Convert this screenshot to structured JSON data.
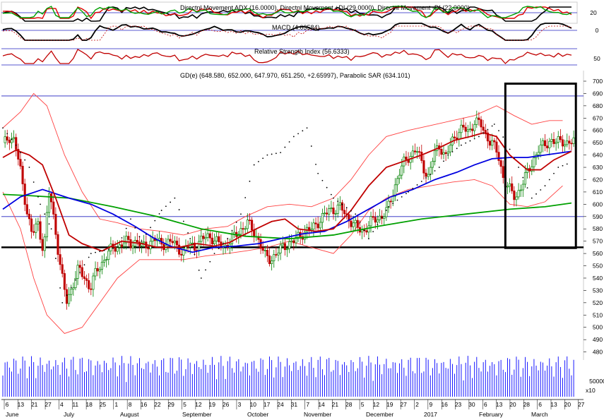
{
  "panels": {
    "adx": {
      "label": "Directnl Movement ADX (16.0000), Directnl Movement +DI (29.0000), Directnl Movement -DI (22.0000)",
      "ticks": [
        "20"
      ]
    },
    "macd": {
      "label": "MACD (4.03584)",
      "ticks": [
        "0"
      ]
    },
    "rsi": {
      "label": "Relative Strength Index (56.6333)",
      "ticks": [
        "50"
      ]
    },
    "price": {
      "label": "GD(e) (648.580, 652.000, 647.970, 651.250, +2.65997), Parabolic SAR (634.101)"
    },
    "volume": {
      "ticks": [
        "50000",
        "x10"
      ]
    }
  },
  "colors": {
    "candle_up": "#008000",
    "candle_down": "#c00000",
    "ma_short": "#c00000",
    "ma_mid": "#0000e0",
    "ma_long": "#00a000",
    "band": "#ff4040",
    "hline": "#2020c0",
    "sar": "#000000",
    "volume": "#0000ff"
  },
  "x_axis": {
    "day_labels": [
      "6",
      "13",
      "21",
      "27",
      "4",
      "11",
      "18",
      "25",
      "1",
      "8",
      "16",
      "22",
      "29",
      "5",
      "12",
      "19",
      "26",
      "3",
      "10",
      "17",
      "24",
      "31",
      "7",
      "14",
      "21",
      "28",
      "5",
      "12",
      "19",
      "27",
      "2",
      "9",
      "16",
      "23",
      "30",
      "6",
      "13",
      "20",
      "28",
      "6",
      "13",
      "20",
      "27"
    ],
    "month_labels": [
      "June",
      "July",
      "August",
      "September",
      "October",
      "November",
      "December",
      "2017",
      "February",
      "March"
    ]
  },
  "chart_data": {
    "type": "candlestick",
    "title": "GD(e) (648.580, 652.000, 647.970, 651.250, +2.65997), Parabolic SAR (634.101)",
    "y_ticks": [
      480,
      490,
      500,
      510,
      520,
      530,
      540,
      550,
      560,
      570,
      580,
      590,
      600,
      610,
      620,
      630,
      640,
      650,
      660,
      670,
      680,
      690,
      700
    ],
    "ylim": [
      472,
      700
    ],
    "last": {
      "open": 648.58,
      "high": 652.0,
      "low": 647.97,
      "close": 651.25,
      "change": 2.65997
    },
    "sar_last": 634.101,
    "closes": [
      648,
      655,
      652,
      628,
      598,
      575,
      585,
      562,
      612,
      580,
      545,
      520,
      535,
      548,
      540,
      532,
      545,
      552,
      560,
      565,
      566,
      570,
      568,
      570,
      565,
      568,
      572,
      568,
      568,
      570,
      565,
      560,
      568,
      565,
      570,
      575,
      572,
      568,
      565,
      570,
      575,
      580,
      585,
      578,
      570,
      558,
      555,
      560,
      565,
      568,
      570,
      575,
      578,
      580,
      585,
      590,
      595,
      596,
      598,
      590,
      585,
      580,
      578,
      585,
      588,
      590,
      595,
      610,
      625,
      635,
      640,
      645,
      632,
      622,
      640,
      648,
      638,
      650,
      658,
      662,
      658,
      668,
      665,
      655,
      650,
      640,
      620,
      612,
      605,
      615,
      625,
      635,
      645,
      648,
      652,
      650,
      652,
      649,
      651
    ],
    "sar_points": [
      [
        0,
        662
      ],
      [
        6,
        648
      ],
      [
        12,
        630
      ],
      [
        17,
        600
      ],
      [
        22,
        580
      ],
      [
        27,
        520
      ],
      [
        40,
        560
      ],
      [
        52,
        565
      ],
      [
        58,
        588
      ],
      [
        63,
        570
      ],
      [
        72,
        595
      ],
      [
        78,
        605
      ],
      [
        85,
        572
      ],
      [
        90,
        540
      ],
      [
        96,
        560
      ],
      [
        102,
        572
      ],
      [
        108,
        592
      ],
      [
        114,
        632
      ],
      [
        120,
        640
      ],
      [
        126,
        642
      ],
      [
        132,
        655
      ],
      [
        138,
        662
      ],
      [
        143,
        625
      ],
      [
        150,
        605
      ],
      [
        160,
        592
      ],
      [
        166,
        572
      ],
      [
        175,
        598
      ],
      [
        184,
        610
      ],
      [
        198,
        630
      ],
      [
        202,
        640
      ],
      [
        208,
        648
      ],
      [
        216,
        655
      ],
      [
        223,
        665
      ],
      [
        228,
        652
      ],
      [
        234,
        630
      ],
      [
        240,
        605
      ],
      [
        246,
        615
      ],
      [
        252,
        630
      ],
      [
        258,
        634
      ]
    ],
    "ma_short_points": [
      [
        0,
        638
      ],
      [
        6,
        644
      ],
      [
        12,
        640
      ],
      [
        18,
        632
      ],
      [
        24,
        605
      ],
      [
        30,
        575
      ],
      [
        36,
        568
      ],
      [
        45,
        562
      ],
      [
        54,
        570
      ],
      [
        63,
        568
      ],
      [
        70,
        565
      ],
      [
        80,
        565
      ],
      [
        88,
        568
      ],
      [
        96,
        566
      ],
      [
        103,
        569
      ],
      [
        108,
        574
      ],
      [
        115,
        580
      ],
      [
        122,
        586
      ],
      [
        128,
        588
      ],
      [
        134,
        580
      ],
      [
        142,
        578
      ],
      [
        150,
        580
      ],
      [
        158,
        595
      ],
      [
        166,
        615
      ],
      [
        174,
        630
      ],
      [
        182,
        635
      ],
      [
        190,
        640
      ],
      [
        198,
        646
      ],
      [
        205,
        652
      ],
      [
        212,
        655
      ],
      [
        218,
        658
      ],
      [
        224,
        655
      ],
      [
        230,
        640
      ],
      [
        238,
        628
      ],
      [
        244,
        628
      ],
      [
        250,
        636
      ],
      [
        258,
        643
      ]
    ],
    "ma_mid_points": [
      [
        0,
        596
      ],
      [
        8,
        606
      ],
      [
        18,
        612
      ],
      [
        30,
        605
      ],
      [
        40,
        600
      ],
      [
        50,
        592
      ],
      [
        60,
        582
      ],
      [
        68,
        573
      ],
      [
        76,
        566
      ],
      [
        86,
        561
      ],
      [
        96,
        565
      ],
      [
        106,
        566
      ],
      [
        116,
        568
      ],
      [
        126,
        572
      ],
      [
        136,
        576
      ],
      [
        146,
        578
      ],
      [
        156,
        586
      ],
      [
        166,
        596
      ],
      [
        176,
        606
      ],
      [
        186,
        612
      ],
      [
        196,
        620
      ],
      [
        206,
        626
      ],
      [
        214,
        632
      ],
      [
        222,
        637
      ],
      [
        230,
        638
      ],
      [
        238,
        638
      ],
      [
        246,
        640
      ],
      [
        258,
        643
      ]
    ],
    "ma_long_points": [
      [
        0,
        608
      ],
      [
        12,
        607
      ],
      [
        30,
        605
      ],
      [
        50,
        598
      ],
      [
        70,
        590
      ],
      [
        90,
        580
      ],
      [
        110,
        574
      ],
      [
        130,
        572
      ],
      [
        150,
        575
      ],
      [
        170,
        582
      ],
      [
        190,
        588
      ],
      [
        210,
        592
      ],
      [
        230,
        596
      ],
      [
        246,
        598
      ],
      [
        258,
        601
      ]
    ],
    "band_upper_points": [
      [
        0,
        662
      ],
      [
        8,
        675
      ],
      [
        14,
        690
      ],
      [
        20,
        680
      ],
      [
        28,
        640
      ],
      [
        36,
        610
      ],
      [
        44,
        588
      ],
      [
        52,
        585
      ],
      [
        62,
        580
      ],
      [
        72,
        578
      ],
      [
        82,
        575
      ],
      [
        92,
        580
      ],
      [
        102,
        582
      ],
      [
        110,
        590
      ],
      [
        120,
        598
      ],
      [
        130,
        600
      ],
      [
        140,
        598
      ],
      [
        150,
        605
      ],
      [
        158,
        620
      ],
      [
        166,
        640
      ],
      [
        174,
        655
      ],
      [
        184,
        660
      ],
      [
        194,
        664
      ],
      [
        204,
        668
      ],
      [
        214,
        672
      ],
      [
        224,
        680
      ],
      [
        232,
        672
      ],
      [
        240,
        665
      ],
      [
        248,
        668
      ],
      [
        254,
        668
      ]
    ],
    "band_lower_points": [
      [
        0,
        610
      ],
      [
        8,
        580
      ],
      [
        14,
        540
      ],
      [
        20,
        510
      ],
      [
        28,
        495
      ],
      [
        36,
        500
      ],
      [
        44,
        520
      ],
      [
        52,
        540
      ],
      [
        62,
        555
      ],
      [
        72,
        555
      ],
      [
        82,
        555
      ],
      [
        92,
        558
      ],
      [
        102,
        560
      ],
      [
        110,
        562
      ],
      [
        120,
        565
      ],
      [
        130,
        570
      ],
      [
        140,
        565
      ],
      [
        150,
        560
      ],
      [
        158,
        575
      ],
      [
        166,
        595
      ],
      [
        174,
        605
      ],
      [
        184,
        612
      ],
      [
        194,
        615
      ],
      [
        204,
        618
      ],
      [
        214,
        620
      ],
      [
        222,
        615
      ],
      [
        230,
        600
      ],
      [
        238,
        598
      ],
      [
        246,
        602
      ],
      [
        254,
        615
      ]
    ],
    "horizontal_levels": [
      688,
      590,
      565
    ],
    "highlight_box": {
      "x0": 228,
      "x1": 260,
      "y0": 564.5,
      "y1": 698
    }
  }
}
